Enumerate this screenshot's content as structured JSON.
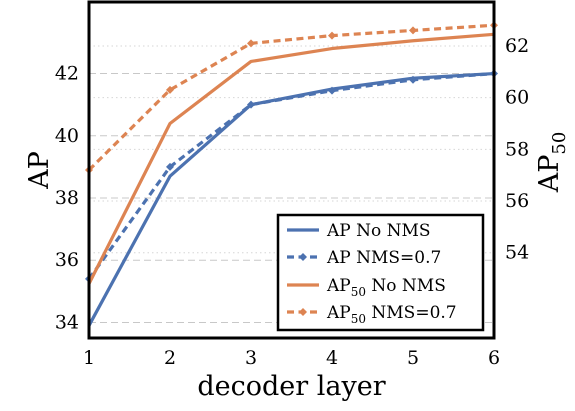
{
  "chart_data": {
    "type": "line",
    "x": [
      1,
      2,
      3,
      4,
      5,
      6
    ],
    "xlabel": "decoder layer",
    "ylabel_left": "AP",
    "ylabel_right": "AP",
    "ylabel_right_sub": "50",
    "xlim": [
      1,
      6
    ],
    "ylim_left": [
      33.5,
      44.3
    ],
    "ylim_right": [
      50.7,
      63.7
    ],
    "x_ticks": [
      "1",
      "2",
      "3",
      "4",
      "5",
      "6"
    ],
    "y_ticks_left": [
      "34",
      "36",
      "38",
      "40",
      "42"
    ],
    "y_ticks_right": [
      "54",
      "56",
      "58",
      "60",
      "62"
    ],
    "grid": true,
    "legend_position": "bottom-right",
    "series": [
      {
        "name": "AP No NMS",
        "name_main": "AP",
        "name_sub": "",
        "name_rest": " No NMS",
        "axis": "left",
        "style": "solid",
        "marker": "none",
        "color": "#4c72b0",
        "values": [
          33.9,
          38.7,
          41.0,
          41.5,
          41.85,
          42.0
        ]
      },
      {
        "name": "AP NMS=0.7",
        "name_main": "AP",
        "name_sub": "",
        "name_rest": " NMS=0.7",
        "axis": "left",
        "style": "dashed",
        "marker": "diamond",
        "color": "#4c72b0",
        "values": [
          35.4,
          39.0,
          41.0,
          41.45,
          41.8,
          42.0
        ]
      },
      {
        "name": "AP50 No NMS",
        "name_main": "AP",
        "name_sub": "50",
        "name_rest": " No NMS",
        "axis": "right",
        "style": "solid",
        "marker": "none",
        "color": "#dd8452",
        "values": [
          52.8,
          59.0,
          61.4,
          61.9,
          62.2,
          62.45
        ]
      },
      {
        "name": "AP50 NMS=0.7",
        "name_main": "AP",
        "name_sub": "50",
        "name_rest": " NMS=0.7",
        "axis": "right",
        "style": "dashed",
        "marker": "diamond",
        "color": "#dd8452",
        "values": [
          57.2,
          60.3,
          62.1,
          62.4,
          62.6,
          62.8
        ]
      }
    ]
  }
}
